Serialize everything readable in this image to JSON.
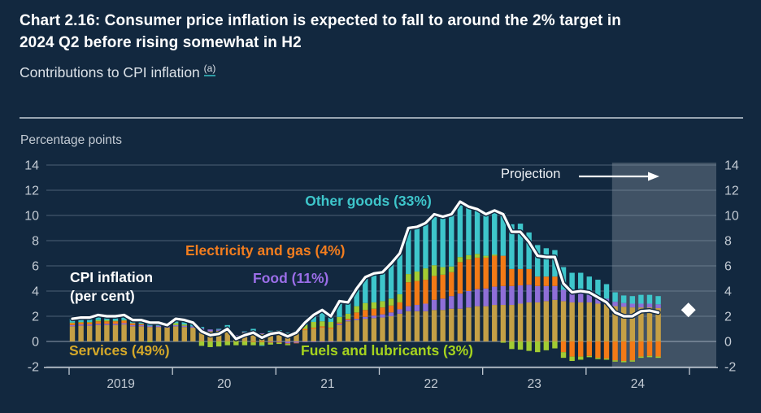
{
  "header": {
    "title_line1": "Chart 2.16: Consumer price inflation is expected to fall to around the 2% target in",
    "title_line2": "2024 Q2 before rising somewhat in H2",
    "subtitle": "Contributions to CPI inflation",
    "footnote_marker": "(a)"
  },
  "plot": {
    "unit_label": "Percentage points",
    "projection_label": "Projection",
    "cpi_label_line1": "CPI inflation",
    "cpi_label_line2": "(per cent)"
  },
  "legend": {
    "other_goods": "Other goods (33%)",
    "electricity_gas": "Electricity and gas (4%)",
    "food": "Food (11%)",
    "services": "Services (49%)",
    "fuels": "Fuels and lubricants (3%)"
  },
  "colors": {
    "background": "#12283F",
    "divider": "#99A5B1",
    "axis_text": "#C3CBD4",
    "gridline": "rgba(176,190,205,0.30)",
    "zero_line": "rgba(200,212,224,0.55)",
    "projection_shade": "rgba(226,232,238,0.22)",
    "services": "#C4A046",
    "food": "#8F6FD8",
    "electricity_gas": "#F37A16",
    "fuels": "#A2CC33",
    "other_goods": "#3EC6CB",
    "cpi_line": "#FFFFFF",
    "diamond": "#FFFFFF",
    "label_services": "#D4A829",
    "label_food": "#9B6EE8",
    "label_elec": "#F37D1E",
    "label_fuels": "#A6D41E",
    "label_other": "#3EC6CB"
  },
  "axis": {
    "y_ticks": [
      14,
      12,
      10,
      8,
      6,
      4,
      2,
      0,
      -2
    ],
    "x_tick_labels": [
      "2019",
      "20",
      "21",
      "22",
      "23",
      "24"
    ]
  },
  "chart_data": {
    "type": "bar",
    "subtype": "stacked-monthly-contributions-with-cpi-line",
    "title": "Contributions to CPI inflation",
    "ylabel": "Percentage points",
    "x_start": "2019-01",
    "frequency": "monthly",
    "ylim": [
      -2,
      14
    ],
    "y_tick_step": 2,
    "categories_years": [
      "2019",
      "20",
      "21",
      "22",
      "23",
      "24"
    ],
    "projection_start_index": 63,
    "series": [
      {
        "name": "Services (49%)",
        "color_key": "services",
        "values": [
          1.2,
          1.25,
          1.25,
          1.3,
          1.3,
          1.3,
          1.35,
          1.2,
          1.2,
          1.15,
          1.15,
          1.1,
          1.2,
          1.15,
          1.1,
          0.9,
          0.8,
          0.85,
          0.95,
          0.45,
          0.7,
          0.75,
          0.6,
          0.7,
          0.75,
          0.65,
          0.65,
          0.9,
          1.0,
          1.1,
          1.0,
          1.3,
          1.6,
          1.7,
          1.8,
          1.85,
          1.9,
          2.0,
          2.2,
          2.4,
          2.4,
          2.4,
          2.5,
          2.5,
          2.6,
          2.6,
          2.7,
          2.8,
          2.8,
          2.9,
          2.9,
          2.9,
          3.0,
          3.1,
          3.1,
          3.2,
          3.3,
          3.2,
          3.1,
          3.1,
          3.1,
          3.0,
          2.95,
          2.8,
          2.75,
          2.7,
          2.7,
          2.7,
          2.65
        ]
      },
      {
        "name": "Food (11%)",
        "color_key": "food",
        "values": [
          0.1,
          0.1,
          0.1,
          0.1,
          0.1,
          0.1,
          0.1,
          0.1,
          0.1,
          0.1,
          0.1,
          0.1,
          0.1,
          0.1,
          0.1,
          0.15,
          0.15,
          0.1,
          0.1,
          0.05,
          0.05,
          0.05,
          0.05,
          -0.05,
          -0.05,
          -0.15,
          -0.1,
          -0.05,
          -0.05,
          -0.05,
          -0.05,
          0.1,
          0.1,
          0.1,
          0.15,
          0.2,
          0.25,
          0.3,
          0.35,
          0.4,
          0.5,
          0.6,
          0.8,
          0.9,
          1.0,
          1.2,
          1.3,
          1.35,
          1.4,
          1.45,
          1.5,
          1.5,
          1.45,
          1.4,
          1.3,
          1.2,
          1.1,
          0.9,
          0.8,
          0.7,
          0.6,
          0.5,
          0.45,
          0.35,
          0.3,
          0.3,
          0.3,
          0.3,
          0.3
        ]
      },
      {
        "name": "Electricity and gas (4%)",
        "color_key": "electricity_gas",
        "values": [
          0.15,
          0.15,
          0.15,
          0.2,
          0.2,
          0.2,
          0.2,
          0.15,
          0.1,
          0.0,
          0.0,
          0.0,
          0.0,
          0.0,
          0.0,
          0.0,
          0.0,
          0.0,
          0.0,
          0.0,
          0.0,
          -0.05,
          -0.05,
          -0.05,
          -0.05,
          -0.05,
          -0.05,
          0.1,
          0.1,
          0.1,
          0.1,
          0.1,
          0.1,
          0.5,
          0.55,
          0.55,
          0.55,
          0.55,
          0.55,
          1.9,
          1.9,
          1.9,
          1.9,
          1.9,
          1.9,
          2.5,
          2.5,
          2.5,
          2.45,
          2.45,
          2.4,
          1.35,
          1.3,
          1.25,
          0.75,
          0.75,
          0.75,
          -0.85,
          -1.2,
          -1.2,
          -1.15,
          -1.3,
          -1.35,
          -1.5,
          -1.55,
          -1.5,
          -1.2,
          -1.15,
          -1.2
        ]
      },
      {
        "name": "Fuels and lubricants (3%)",
        "color_key": "fuels",
        "values": [
          0.05,
          0.05,
          0.05,
          0.1,
          0.1,
          0.05,
          0.05,
          0.0,
          0.0,
          -0.05,
          0.0,
          0.0,
          0.15,
          0.1,
          0.0,
          -0.35,
          -0.45,
          -0.4,
          -0.3,
          -0.3,
          -0.3,
          -0.25,
          -0.25,
          -0.15,
          -0.1,
          -0.1,
          0.1,
          0.3,
          0.45,
          0.4,
          0.45,
          0.45,
          0.4,
          0.5,
          0.55,
          0.5,
          0.5,
          0.55,
          0.65,
          0.65,
          0.75,
          0.9,
          0.85,
          0.6,
          0.45,
          0.4,
          0.35,
          0.3,
          0.15,
          0.1,
          -0.1,
          -0.6,
          -0.65,
          -0.75,
          -0.85,
          -0.7,
          -0.55,
          -0.45,
          -0.35,
          -0.25,
          -0.1,
          -0.1,
          -0.1,
          -0.1,
          -0.1,
          -0.1,
          -0.1,
          -0.1,
          -0.1
        ]
      },
      {
        "name": "Other goods (33%)",
        "color_key": "other_goods",
        "values": [
          0.3,
          0.35,
          0.35,
          0.4,
          0.3,
          0.35,
          0.4,
          0.25,
          0.3,
          0.3,
          0.25,
          0.1,
          0.35,
          0.35,
          0.3,
          0.1,
          0.0,
          0.05,
          0.25,
          0.0,
          0.05,
          0.2,
          -0.05,
          0.15,
          0.15,
          0.05,
          0.1,
          0.25,
          0.6,
          0.95,
          0.5,
          1.25,
          0.9,
          1.4,
          2.05,
          2.3,
          2.3,
          2.8,
          3.25,
          3.65,
          3.55,
          3.6,
          4.05,
          4.0,
          4.15,
          4.4,
          3.85,
          3.55,
          3.3,
          3.5,
          3.4,
          3.55,
          3.6,
          2.9,
          2.5,
          2.25,
          2.1,
          1.8,
          1.55,
          1.65,
          1.45,
          1.4,
          1.15,
          0.75,
          0.6,
          0.6,
          0.7,
          0.7,
          0.65
        ]
      }
    ],
    "line": {
      "name": "CPI inflation (per cent)",
      "color_key": "cpi_line",
      "values": [
        1.8,
        1.9,
        1.9,
        2.1,
        2.0,
        2.0,
        2.1,
        1.7,
        1.7,
        1.5,
        1.5,
        1.3,
        1.8,
        1.7,
        1.5,
        0.8,
        0.5,
        0.6,
        1.0,
        0.2,
        0.5,
        0.7,
        0.3,
        0.6,
        0.7,
        0.4,
        0.7,
        1.5,
        2.1,
        2.5,
        2.0,
        3.2,
        3.1,
        4.2,
        5.1,
        5.4,
        5.5,
        6.2,
        7.0,
        9.0,
        9.1,
        9.4,
        10.1,
        9.9,
        10.1,
        11.1,
        10.7,
        10.5,
        10.1,
        10.4,
        10.1,
        8.7,
        8.7,
        7.9,
        6.8,
        6.7,
        6.7,
        4.6,
        3.9,
        4.0,
        3.9,
        3.5,
        3.1,
        2.3,
        2.0,
        2.0,
        2.4,
        2.45,
        2.3
      ]
    },
    "diamond": {
      "value": 2.5,
      "x_index": 71.5
    }
  }
}
